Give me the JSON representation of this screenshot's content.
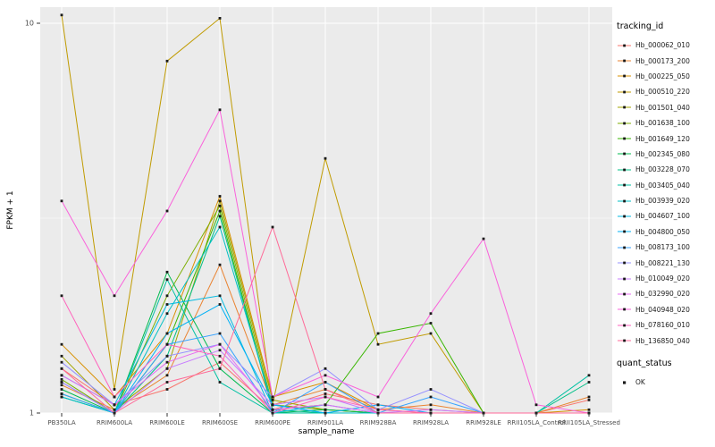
{
  "figure": {
    "background": "#FFFFFF",
    "panel_background": "#EBEBEB",
    "gridline_color": "#FFFFFF",
    "point_color": "#1A1A1A",
    "axis_text_color": "#4D4D4D"
  },
  "chart_data": {
    "type": "line",
    "title": "",
    "xlabel": "sample_name",
    "ylabel": "FPKM + 1",
    "y_scale": "log10",
    "ylim": [
      1,
      11
    ],
    "y_ticks": [
      "1",
      "10"
    ],
    "grid": true,
    "legend_position": "right",
    "legend_title": "tracking_id",
    "legend2_title": "quant_status",
    "legend2_items": [
      "OK"
    ],
    "categories": [
      "PB350LA",
      "RRIM600LA",
      "RRIM600LE",
      "RRIM600SE",
      "RRIM600PE",
      "RRIM901LA",
      "RRIM928BA",
      "RRIM928LA",
      "RRIM928LE",
      "RRII105LA_Control",
      "RRII105LA_Stressed"
    ],
    "series": [
      {
        "name": "Hb_000062_010",
        "color": "#F8766D",
        "values": [
          1.3,
          1.05,
          1.15,
          1.35,
          1.02,
          1.12,
          1.05,
          1.02,
          1.0,
          1.0,
          1.08
        ]
      },
      {
        "name": "Hb_000173_200",
        "color": "#EA8331",
        "values": [
          1.18,
          1.02,
          1.25,
          2.4,
          1.05,
          1.15,
          1.02,
          1.05,
          1.0,
          1.0,
          1.1
        ]
      },
      {
        "name": "Hb_000225_050",
        "color": "#D89000",
        "values": [
          1.5,
          1.1,
          1.6,
          3.6,
          1.1,
          1.2,
          1.02,
          1.0,
          1.0,
          1.0,
          1.02
        ]
      },
      {
        "name": "Hb_000510_220",
        "color": "#C09B00",
        "values": [
          10.5,
          1.15,
          8.0,
          10.3,
          1.05,
          4.5,
          1.5,
          1.6,
          1.0,
          1.0,
          1.0
        ]
      },
      {
        "name": "Hb_001501_040",
        "color": "#A3A500",
        "values": [
          1.4,
          1.02,
          1.3,
          3.5,
          1.08,
          1.02,
          1.0,
          1.0,
          1.0,
          1.0,
          1.0
        ]
      },
      {
        "name": "Hb_001638_100",
        "color": "#7CAE00",
        "values": [
          1.22,
          1.0,
          2.0,
          3.4,
          1.05,
          1.02,
          1.0,
          1.0,
          1.0,
          1.0,
          1.0
        ]
      },
      {
        "name": "Hb_001649_120",
        "color": "#39B600",
        "values": [
          1.12,
          1.0,
          1.5,
          3.3,
          1.02,
          1.05,
          1.6,
          1.7,
          1.0,
          1.0,
          1.0
        ]
      },
      {
        "name": "Hb_002345_080",
        "color": "#00BB4E",
        "values": [
          1.15,
          1.0,
          2.3,
          1.3,
          1.0,
          1.02,
          1.0,
          1.0,
          1.0,
          1.0,
          1.0
        ]
      },
      {
        "name": "Hb_003228_070",
        "color": "#00C087",
        "values": [
          1.1,
          1.0,
          1.4,
          3.2,
          1.02,
          1.0,
          1.0,
          1.0,
          1.0,
          1.0,
          1.2
        ]
      },
      {
        "name": "Hb_003405_040",
        "color": "#00C1A3",
        "values": [
          1.2,
          1.0,
          2.2,
          1.2,
          1.0,
          1.0,
          1.0,
          1.0,
          1.0,
          1.0,
          1.25
        ]
      },
      {
        "name": "Hb_003939_020",
        "color": "#00BFC4",
        "values": [
          1.1,
          1.0,
          1.8,
          3.0,
          1.05,
          1.0,
          1.0,
          1.0,
          1.0,
          1.0,
          1.0
        ]
      },
      {
        "name": "Hb_004607_100",
        "color": "#00BAE0",
        "values": [
          1.25,
          1.05,
          1.9,
          2.0,
          1.0,
          1.05,
          1.0,
          1.0,
          1.0,
          1.0,
          1.0
        ]
      },
      {
        "name": "Hb_004800_050",
        "color": "#00B0F6",
        "values": [
          1.2,
          1.0,
          1.6,
          1.9,
          1.05,
          1.0,
          1.05,
          1.0,
          1.0,
          1.0,
          1.0
        ]
      },
      {
        "name": "Hb_008173_100",
        "color": "#35A2FF",
        "values": [
          1.12,
          1.0,
          1.5,
          1.6,
          1.0,
          1.2,
          1.0,
          1.1,
          1.0,
          1.0,
          1.0
        ]
      },
      {
        "name": "Hb_008221_130",
        "color": "#9590FF",
        "values": [
          1.35,
          1.05,
          1.4,
          1.5,
          1.1,
          1.3,
          1.02,
          1.15,
          1.0,
          1.0,
          1.0
        ]
      },
      {
        "name": "Hb_010049_020",
        "color": "#C77CFF",
        "values": [
          1.2,
          1.0,
          1.3,
          1.45,
          1.05,
          1.1,
          1.0,
          1.02,
          1.0,
          1.0,
          1.0
        ]
      },
      {
        "name": "Hb_032990_020",
        "color": "#E76BF3",
        "values": [
          1.25,
          1.05,
          1.35,
          1.5,
          1.02,
          1.05,
          1.0,
          1.0,
          1.0,
          1.0,
          1.0
        ]
      },
      {
        "name": "Hb_040948_020",
        "color": "#FA62DB",
        "values": [
          3.5,
          2.0,
          3.3,
          6.0,
          1.1,
          1.25,
          1.1,
          1.8,
          2.8,
          1.05,
          1.0
        ]
      },
      {
        "name": "Hb_078160_010",
        "color": "#FF62BC",
        "values": [
          2.0,
          1.1,
          1.5,
          1.4,
          1.0,
          1.1,
          1.02,
          1.0,
          1.0,
          1.0,
          1.0
        ]
      },
      {
        "name": "Hb_136850_040",
        "color": "#FF6A98",
        "values": [
          1.3,
          1.0,
          1.2,
          1.3,
          3.0,
          1.15,
          1.0,
          1.0,
          1.0,
          1.0,
          1.0
        ]
      }
    ]
  }
}
